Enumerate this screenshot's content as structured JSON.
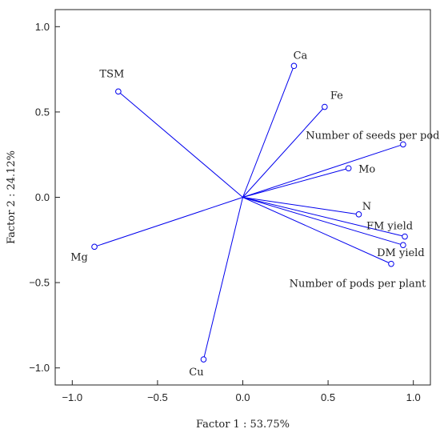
{
  "chart_data": {
    "type": "scatter",
    "subtype": "loading-plot",
    "xlabel": "Factor 1 : 53.75%",
    "ylabel": "Factor 2 : 24.12%",
    "xlim": [
      -1.1,
      1.1
    ],
    "ylim": [
      -1.1,
      1.1
    ],
    "xticks": [
      -1.0,
      -0.5,
      0.0,
      0.5,
      1.0
    ],
    "yticks": [
      -1.0,
      -0.5,
      0.0,
      0.5,
      1.0
    ],
    "xtick_labels": [
      "−1.0",
      "−0.5",
      "0.0",
      "0.5",
      "1.0"
    ],
    "ytick_labels": [
      "−1.0",
      "−0.5",
      "0.0",
      "0.5",
      "1.0"
    ],
    "grid": false,
    "vector_color": "#0000ee",
    "vectors_from_origin": true,
    "points": [
      {
        "label": "Ca",
        "x": 0.3,
        "y": 0.77
      },
      {
        "label": "Fe",
        "x": 0.48,
        "y": 0.53
      },
      {
        "label": "TSM",
        "x": -0.73,
        "y": 0.62
      },
      {
        "label": "Number of seeds per pod",
        "x": 0.94,
        "y": 0.31
      },
      {
        "label": "Mo",
        "x": 0.62,
        "y": 0.17
      },
      {
        "label": "N",
        "x": 0.68,
        "y": -0.1
      },
      {
        "label": "FM yield",
        "x": 0.95,
        "y": -0.23
      },
      {
        "label": "DM yield",
        "x": 0.94,
        "y": -0.28
      },
      {
        "label": "Number of pods per plant",
        "x": 0.87,
        "y": -0.39
      },
      {
        "label": "Mg",
        "x": -0.87,
        "y": -0.29
      },
      {
        "label": "Cu",
        "x": -0.23,
        "y": -0.95
      }
    ]
  }
}
